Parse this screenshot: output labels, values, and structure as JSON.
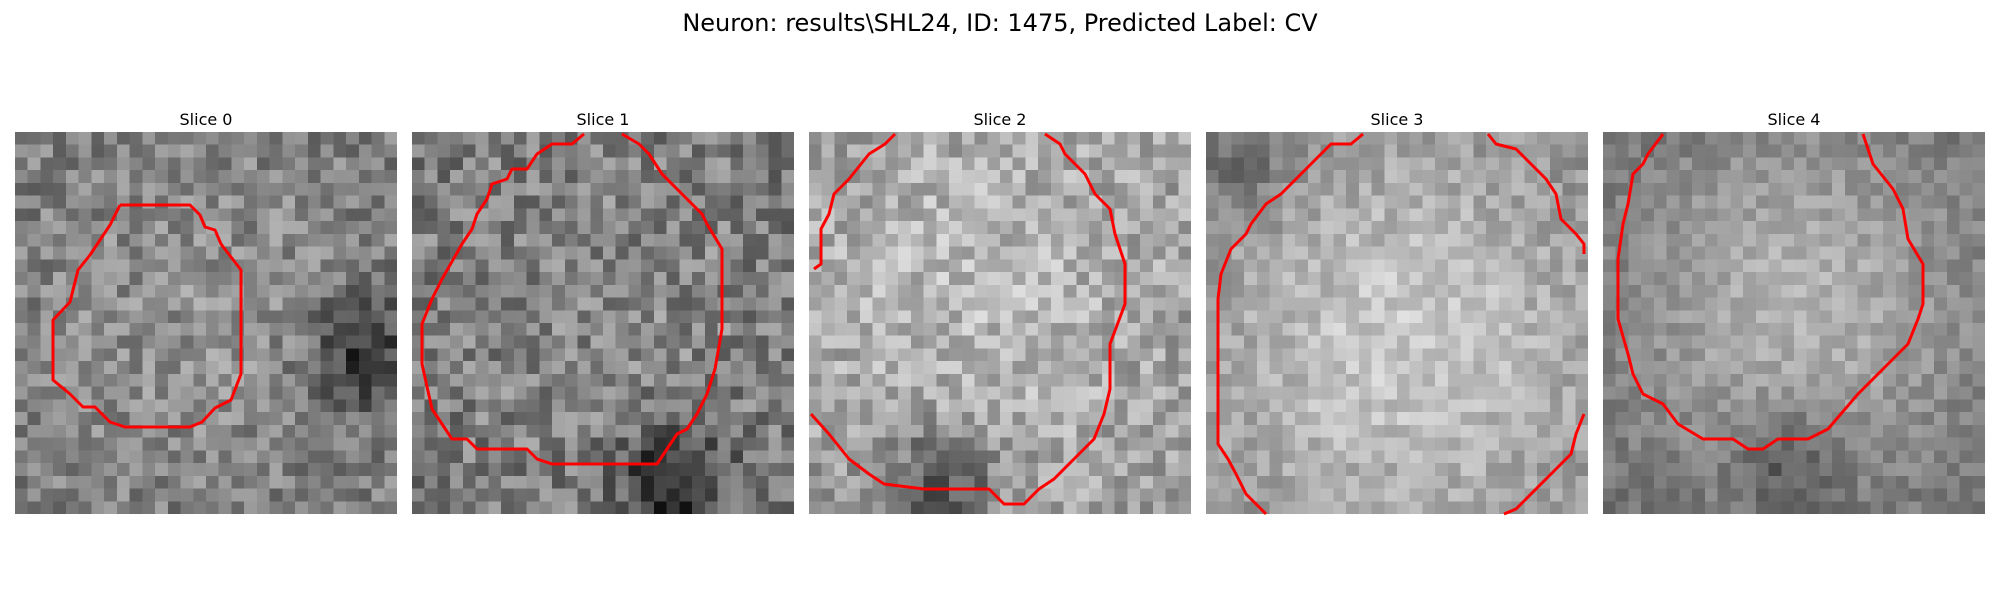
{
  "figure": {
    "title": "Neuron: results\\SHL24, ID: 1475, Predicted Label: CV"
  },
  "panels": [
    {
      "title": "Slice 0"
    },
    {
      "title": "Slice 1"
    },
    {
      "title": "Slice 2"
    },
    {
      "title": "Slice 3"
    },
    {
      "title": "Slice 4"
    }
  ],
  "contour_color": "#ff0000",
  "colormap": "gray"
}
